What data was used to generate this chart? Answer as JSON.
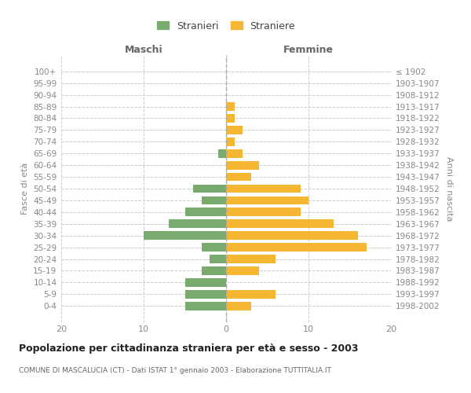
{
  "age_groups": [
    "0-4",
    "5-9",
    "10-14",
    "15-19",
    "20-24",
    "25-29",
    "30-34",
    "35-39",
    "40-44",
    "45-49",
    "50-54",
    "55-59",
    "60-64",
    "65-69",
    "70-74",
    "75-79",
    "80-84",
    "85-89",
    "90-94",
    "95-99",
    "100+"
  ],
  "birth_years": [
    "1998-2002",
    "1993-1997",
    "1988-1992",
    "1983-1987",
    "1978-1982",
    "1973-1977",
    "1968-1972",
    "1963-1967",
    "1958-1962",
    "1953-1957",
    "1948-1952",
    "1943-1947",
    "1938-1942",
    "1933-1937",
    "1928-1932",
    "1923-1927",
    "1918-1922",
    "1913-1917",
    "1908-1912",
    "1903-1907",
    "≤ 1902"
  ],
  "males": [
    5,
    5,
    5,
    3,
    2,
    3,
    10,
    7,
    5,
    3,
    4,
    0,
    0,
    1,
    0,
    0,
    0,
    0,
    0,
    0,
    0
  ],
  "females": [
    3,
    6,
    0,
    4,
    6,
    17,
    16,
    13,
    9,
    10,
    9,
    3,
    4,
    2,
    1,
    2,
    1,
    1,
    0,
    0,
    0
  ],
  "male_color": "#7aab6e",
  "female_color": "#f5b731",
  "grid_color": "#cccccc",
  "title": "Popolazione per cittadinanza straniera per età e sesso - 2003",
  "subtitle": "COMUNE DI MASCALUCIA (CT) - Dati ISTAT 1° gennaio 2003 - Elaborazione TUTTITALIA.IT",
  "ylabel_left": "Fasce di età",
  "ylabel_right": "Anni di nascita",
  "label_maschi": "Maschi",
  "label_femmine": "Femmine",
  "legend_male": "Stranieri",
  "legend_female": "Straniere",
  "xlim": 20
}
